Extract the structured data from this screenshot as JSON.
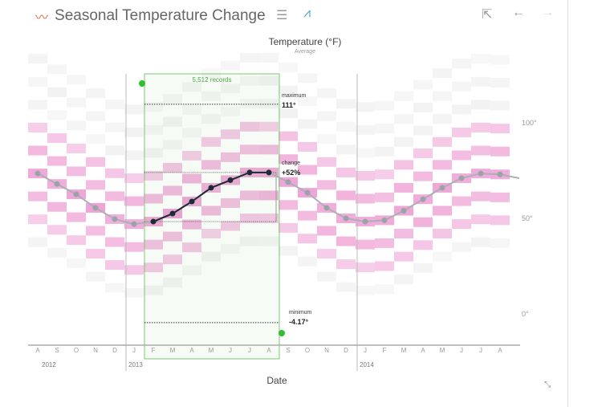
{
  "header": {
    "title": "Seasonal Temperature Change",
    "icons": [
      "line-chart-icon",
      "bar-list-icon",
      "line-view-icon",
      "external-link-icon",
      "back-arrow-icon",
      "forward-arrow-icon"
    ]
  },
  "chart_data": {
    "type": "line",
    "title": "Temperature (°F)",
    "subtitle": "Average",
    "xlabel": "Date",
    "months": [
      "A",
      "S",
      "O",
      "N",
      "D",
      "J",
      "F",
      "M",
      "A",
      "M",
      "J",
      "J",
      "A",
      "S",
      "O",
      "N",
      "D",
      "J",
      "F",
      "M",
      "A",
      "M",
      "J",
      "J",
      "A"
    ],
    "years": [
      {
        "label": "2012",
        "month_index": 0
      },
      {
        "label": "2013",
        "month_index": 5
      },
      {
        "label": "2014",
        "month_index": 17
      }
    ],
    "values": [
      73.5,
      68,
      62.6,
      55.5,
      49.6,
      47,
      48.3,
      52.5,
      58.8,
      66,
      70,
      74,
      74,
      69,
      63.4,
      55.5,
      50,
      48.3,
      49,
      54,
      60,
      66,
      71,
      73.5,
      73
    ],
    "yticks": [
      "100°",
      "50°",
      "0°"
    ],
    "ytick_values": [
      100,
      50,
      0
    ],
    "ylim": [
      -16,
      128
    ],
    "selection": {
      "start_index": 6,
      "end_index": 12,
      "records": "5,512 records",
      "maximum_label": "maximum",
      "maximum": "111°",
      "maximum_value": 111,
      "change_label": "change",
      "change": "+52%",
      "minimum_label": "minimum",
      "minimum": "-4.17°",
      "minimum_value": -4.17
    },
    "colors": {
      "line": "#aab0b5",
      "selected_line": "#1e2a3a",
      "selection": "#7cc576",
      "heat": "#e04fb0"
    }
  },
  "footer": {
    "collapse_icon": "collapse-icon"
  }
}
